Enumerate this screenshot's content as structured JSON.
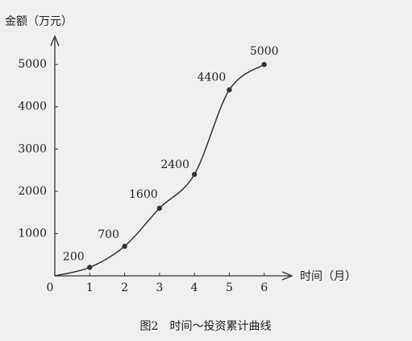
{
  "chart_data": {
    "type": "line",
    "title": "图2　时间～投资累计曲线",
    "x_label": "时间（月）",
    "y_label": "金额（万元）",
    "x": [
      0,
      1,
      2,
      3,
      4,
      5,
      6
    ],
    "series": [
      {
        "name": "投资累计",
        "color": "#333333",
        "values": [
          0,
          200,
          700,
          1600,
          2400,
          4400,
          5000
        ],
        "value_labels": [
          null,
          "200",
          "700",
          "1600",
          "2400",
          "4400",
          "5000"
        ]
      }
    ],
    "xlim": [
      0,
      6.7
    ],
    "ylim": [
      0,
      5650
    ],
    "xticks": [
      0,
      1,
      2,
      3,
      4,
      5,
      6
    ],
    "yticks": [
      1000,
      2000,
      3000,
      4000,
      5000
    ],
    "grid": false
  }
}
